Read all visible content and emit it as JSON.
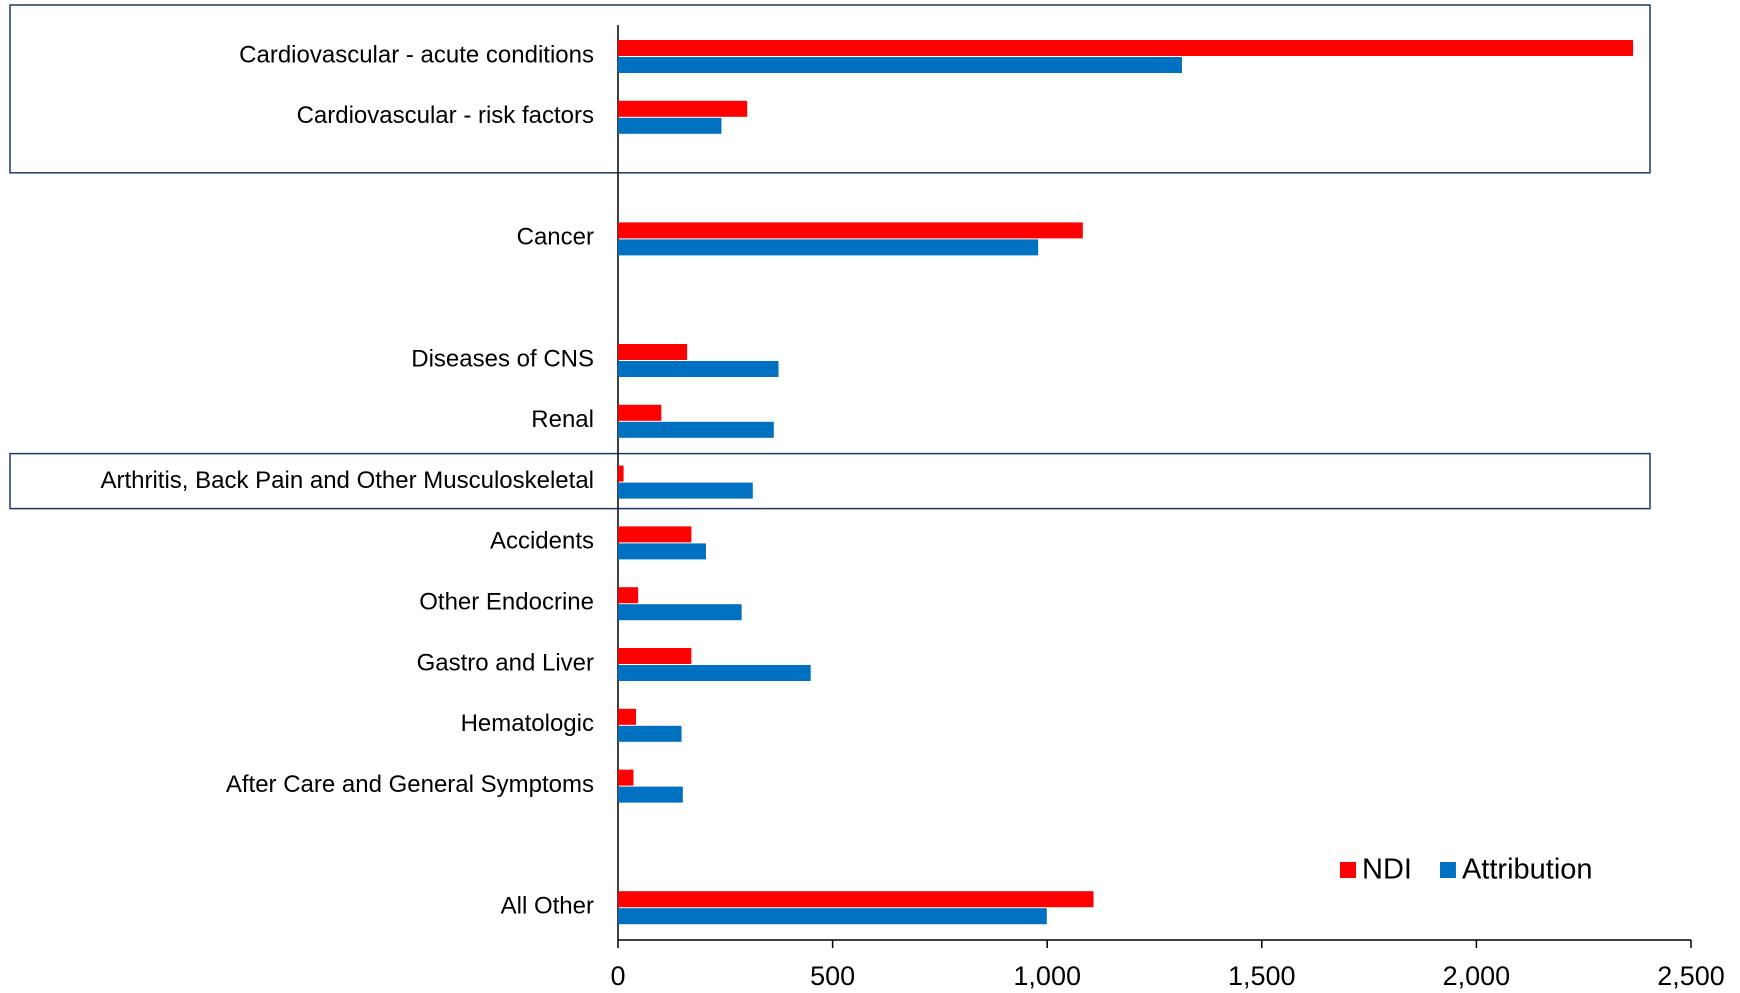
{
  "chart_data": {
    "type": "hbar",
    "categories": [
      "Cardiovascular - acute conditions",
      "Cardiovascular - risk factors",
      null,
      "Cancer",
      null,
      "Diseases of CNS",
      "Renal",
      "Arthritis, Back Pain and Other Musculoskeletal",
      "Accidents",
      "Other Endocrine",
      "Gastro and Liver",
      "Hematologic",
      "After Care and General Symptoms",
      null,
      "All Other"
    ],
    "series": [
      {
        "name": "NDI",
        "color": "#ff0000",
        "values": [
          2365,
          301,
          null,
          1083,
          null,
          161,
          101,
          13,
          171,
          47,
          171,
          42,
          36,
          null,
          1108
        ]
      },
      {
        "name": "Attribution",
        "color": "#0070c0",
        "values": [
          1314,
          241,
          null,
          979,
          null,
          374,
          363,
          314,
          205,
          288,
          449,
          148,
          151,
          null,
          999
        ]
      }
    ],
    "xlim": [
      0,
      2500
    ],
    "xticks": [
      0,
      500,
      {
        "value": 1000,
        "label": "1,000"
      },
      {
        "value": 1500,
        "label": "1,500"
      },
      {
        "value": 2000,
        "label": "2,000"
      },
      {
        "value": 2500,
        "label": "2,500"
      }
    ],
    "legend": "lower right"
  }
}
